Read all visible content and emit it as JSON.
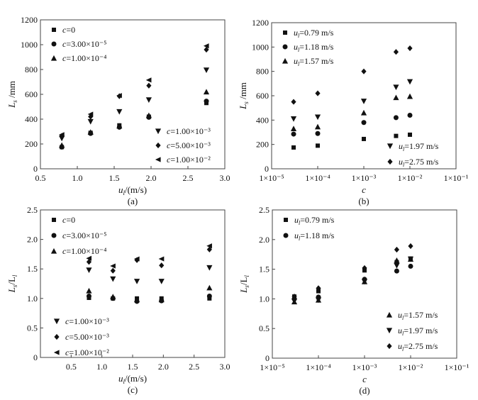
{
  "chart_data": [
    {
      "panel": "(a)",
      "type": "scatter",
      "xscale": "linear",
      "xlim": [
        0.5,
        3.0
      ],
      "xticks": [
        "0.5",
        "1.0",
        "1.5",
        "2.0",
        "2.5",
        "3.0"
      ],
      "ylim": [
        0,
        1200
      ],
      "yticks": [
        "0",
        "200",
        "400",
        "600",
        "800",
        "1000",
        "1200"
      ],
      "xlabel": {
        "main": "u",
        "sub": "l",
        "rest": "/(m/s)"
      },
      "ylabel": {
        "main": "L",
        "sub": "s",
        "rest": " /mm"
      },
      "x": [
        0.79,
        1.18,
        1.57,
        1.97,
        2.75
      ],
      "series": [
        {
          "name": "c=0",
          "marker": "square",
          "values": [
            175,
            290,
            350,
            420,
            530
          ]
        },
        {
          "name": "c=3.00×10⁻⁵",
          "marker": "circle",
          "values": [
            175,
            285,
            335,
            415,
            545
          ]
        },
        {
          "name": "c=1.00×10⁻⁴",
          "marker": "triangle-up",
          "values": [
            190,
            295,
            345,
            430,
            620
          ]
        },
        {
          "name": "c=1.00×10⁻³",
          "marker": "triangle-down",
          "values": [
            245,
            380,
            460,
            555,
            795
          ]
        },
        {
          "name": "c=5.00×10⁻³",
          "marker": "diamond",
          "values": [
            265,
            420,
            585,
            670,
            960
          ]
        },
        {
          "name": "c=1.00×10⁻²",
          "marker": "triangle-left",
          "values": [
            275,
            440,
            590,
            715,
            990
          ]
        }
      ],
      "legend": [
        "top-left",
        "bottom-right"
      ]
    },
    {
      "panel": "(b)",
      "type": "scatter",
      "xscale": "log",
      "xlim": [
        1e-05,
        0.1
      ],
      "xticks": [
        "1×10⁻⁵",
        "1×10⁻⁴",
        "1×10⁻³",
        "1×10⁻²",
        "1×10⁻¹"
      ],
      "ylim": [
        0,
        1200
      ],
      "yticks": [
        "0",
        "200",
        "400",
        "600",
        "800",
        "1000",
        "1200"
      ],
      "xlabel": {
        "main": "c",
        "sub": "",
        "rest": ""
      },
      "ylabel": {
        "main": "L",
        "sub": "s",
        "rest": " /mm"
      },
      "x": [
        3e-05,
        0.0001,
        0.001,
        0.005,
        0.01
      ],
      "series": [
        {
          "name": "=0.79 m/s",
          "marker": "square",
          "values": [
            175,
            190,
            245,
            270,
            280
          ]
        },
        {
          "name": "=1.18 m/s",
          "marker": "circle",
          "values": [
            285,
            290,
            380,
            420,
            440
          ]
        },
        {
          "name": "=1.57 m/s",
          "marker": "triangle-up",
          "values": [
            330,
            345,
            460,
            585,
            595
          ]
        },
        {
          "name": "=1.97 m/s",
          "marker": "triangle-down",
          "values": [
            410,
            425,
            555,
            670,
            715
          ]
        },
        {
          "name": "=2.75 m/s",
          "marker": "diamond",
          "values": [
            550,
            620,
            800,
            960,
            990
          ]
        }
      ],
      "legend": [
        "top-left",
        "bottom-right"
      ]
    },
    {
      "panel": "(c)",
      "type": "scatter",
      "xscale": "linear",
      "xlim": [
        0,
        3.0
      ],
      "xticks": [
        "0.5",
        "1.0",
        "1.5",
        "2.0",
        "2.5",
        "3.0"
      ],
      "ylim": [
        0,
        2.5
      ],
      "yticks": [
        "0",
        "0.5",
        "1.0",
        "1.5",
        "2.0",
        "2.5"
      ],
      "xlabel": {
        "main": "u",
        "sub": "l",
        "rest": "/(m/s)"
      },
      "ylabel": {
        "main": "L",
        "sub": "s",
        "rest": "/L",
        "sub2": "l"
      },
      "x": [
        0.79,
        1.18,
        1.57,
        1.97,
        2.75
      ],
      "series": [
        {
          "name": "c=0",
          "marker": "square",
          "values": [
            1.01,
            1.0,
            1.0,
            1.0,
            1.0
          ]
        },
        {
          "name": "c=3.00×10⁻⁵",
          "marker": "circle",
          "values": [
            1.04,
            1.0,
            0.95,
            0.96,
            1.04
          ]
        },
        {
          "name": "c=1.00×10⁻⁴",
          "marker": "triangle-up",
          "values": [
            1.13,
            1.03,
            0.98,
            0.98,
            1.18
          ]
        },
        {
          "name": "c=1.00×10⁻³",
          "marker": "triangle-down",
          "values": [
            1.48,
            1.33,
            1.29,
            1.29,
            1.52
          ]
        },
        {
          "name": "c=5.00×10⁻³",
          "marker": "diamond",
          "values": [
            1.62,
            1.47,
            1.65,
            1.56,
            1.83
          ]
        },
        {
          "name": "c=1.00×10⁻²",
          "marker": "triangle-left",
          "values": [
            1.68,
            1.55,
            1.67,
            1.67,
            1.89
          ]
        }
      ],
      "legend": [
        "top-left",
        "bottom-left"
      ]
    },
    {
      "panel": "(d)",
      "type": "scatter",
      "xscale": "log",
      "xlim": [
        1e-05,
        0.1
      ],
      "xticks": [
        "1×10⁻⁵",
        "1×10⁻⁴",
        "1×10⁻³",
        "1×10⁻²",
        "1×10⁻¹"
      ],
      "ylim": [
        0,
        2.5
      ],
      "yticks": [
        "0",
        "0.5",
        "1.0",
        "1.5",
        "2.0",
        "2.5"
      ],
      "xlabel": {
        "main": "c",
        "sub": "",
        "rest": ""
      },
      "ylabel": {
        "main": "L",
        "sub": "s",
        "rest": "/L",
        "sub2": "l"
      },
      "x": [
        3e-05,
        0.0001,
        0.001,
        0.005,
        0.01
      ],
      "series": [
        {
          "name": "=0.79 m/s",
          "marker": "square",
          "values": [
            1.04,
            1.13,
            1.48,
            1.62,
            1.68
          ]
        },
        {
          "name": "=1.18 m/s",
          "marker": "circle",
          "values": [
            1.0,
            1.03,
            1.33,
            1.47,
            1.55
          ]
        },
        {
          "name": "=1.57 m/s",
          "marker": "triangle-up",
          "values": [
            0.95,
            0.98,
            1.29,
            1.65,
            1.67
          ]
        },
        {
          "name": "=1.97 m/s",
          "marker": "triangle-down",
          "values": [
            0.96,
            0.98,
            1.29,
            1.56,
            1.67
          ]
        },
        {
          "name": "=2.75 m/s",
          "marker": "diamond",
          "values": [
            1.04,
            1.18,
            1.52,
            1.83,
            1.89
          ]
        }
      ],
      "legend": [
        "top-left",
        "bottom-right"
      ]
    }
  ]
}
